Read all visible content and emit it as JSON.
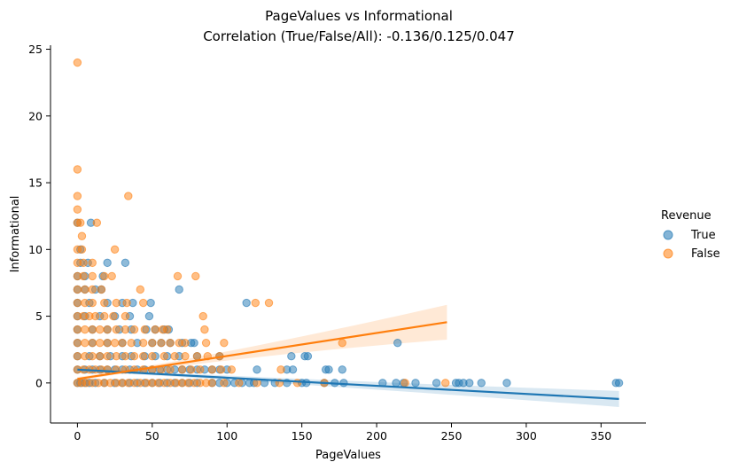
{
  "chart_data": {
    "type": "scatter",
    "title_line1": "PageValues vs Informational",
    "title_line2": "Correlation (True/False/All): -0.136/0.125/0.047",
    "xlabel": "PageValues",
    "ylabel": "Informational",
    "xlim": [
      -18,
      380
    ],
    "ylim": [
      -3,
      25.3
    ],
    "xticks": [
      0,
      50,
      100,
      150,
      200,
      250,
      300,
      350
    ],
    "yticks": [
      0,
      5,
      10,
      15,
      20,
      25
    ],
    "grid": false,
    "legend": {
      "title": "Revenue",
      "placement": "right",
      "entries": [
        {
          "label": "True",
          "color": "#1f77b4"
        },
        {
          "label": "False",
          "color": "#ff7f0e"
        }
      ]
    },
    "series": [
      {
        "name": "True",
        "color": "#1f77b4",
        "points": [
          [
            0,
            0
          ],
          [
            2,
            0
          ],
          [
            5,
            0
          ],
          [
            8,
            0
          ],
          [
            12,
            0
          ],
          [
            18,
            0
          ],
          [
            25,
            0
          ],
          [
            30,
            0
          ],
          [
            35,
            0
          ],
          [
            40,
            0
          ],
          [
            45,
            0
          ],
          [
            50,
            0
          ],
          [
            55,
            0
          ],
          [
            60,
            0
          ],
          [
            65,
            0
          ],
          [
            70,
            0
          ],
          [
            75,
            0
          ],
          [
            80,
            0
          ],
          [
            90,
            0
          ],
          [
            95,
            0
          ],
          [
            100,
            0
          ],
          [
            105,
            0
          ],
          [
            110,
            0
          ],
          [
            115,
            0
          ],
          [
            118,
            0
          ],
          [
            125,
            0
          ],
          [
            132,
            0
          ],
          [
            140,
            0
          ],
          [
            150,
            0
          ],
          [
            153,
            0
          ],
          [
            165,
            0
          ],
          [
            172,
            0
          ],
          [
            178,
            0
          ],
          [
            204,
            0
          ],
          [
            213,
            0
          ],
          [
            218,
            0
          ],
          [
            226,
            0
          ],
          [
            240,
            0
          ],
          [
            253,
            0
          ],
          [
            255,
            0
          ],
          [
            258,
            0
          ],
          [
            262,
            0
          ],
          [
            270,
            0
          ],
          [
            287,
            0
          ],
          [
            360,
            0
          ],
          [
            362,
            0
          ],
          [
            0,
            1
          ],
          [
            5,
            1
          ],
          [
            10,
            1
          ],
          [
            15,
            1
          ],
          [
            20,
            1
          ],
          [
            25,
            1
          ],
          [
            30,
            1
          ],
          [
            35,
            1
          ],
          [
            40,
            1
          ],
          [
            45,
            1
          ],
          [
            50,
            1
          ],
          [
            55,
            1
          ],
          [
            60,
            1
          ],
          [
            65,
            1
          ],
          [
            70,
            1
          ],
          [
            75,
            1
          ],
          [
            80,
            1
          ],
          [
            85,
            1
          ],
          [
            90,
            1
          ],
          [
            95,
            1
          ],
          [
            100,
            1
          ],
          [
            120,
            1
          ],
          [
            140,
            1
          ],
          [
            144,
            1
          ],
          [
            166,
            1
          ],
          [
            168,
            1
          ],
          [
            177,
            1
          ],
          [
            0,
            2
          ],
          [
            8,
            2
          ],
          [
            15,
            2
          ],
          [
            22,
            2
          ],
          [
            30,
            2
          ],
          [
            36,
            2
          ],
          [
            45,
            2
          ],
          [
            52,
            2
          ],
          [
            60,
            2
          ],
          [
            68,
            2
          ],
          [
            80,
            2
          ],
          [
            95,
            2
          ],
          [
            143,
            2
          ],
          [
            152,
            2
          ],
          [
            154,
            2
          ],
          [
            0,
            3
          ],
          [
            10,
            3
          ],
          [
            20,
            3
          ],
          [
            30,
            3
          ],
          [
            40,
            3
          ],
          [
            50,
            3
          ],
          [
            56,
            3
          ],
          [
            62,
            3
          ],
          [
            70,
            3
          ],
          [
            76,
            3
          ],
          [
            78,
            3
          ],
          [
            214,
            3
          ],
          [
            0,
            4
          ],
          [
            10,
            4
          ],
          [
            20,
            4
          ],
          [
            28,
            4
          ],
          [
            36,
            4
          ],
          [
            46,
            4
          ],
          [
            52,
            4
          ],
          [
            58,
            4
          ],
          [
            61,
            4
          ],
          [
            0,
            5
          ],
          [
            5,
            5
          ],
          [
            15,
            5
          ],
          [
            25,
            5
          ],
          [
            35,
            5
          ],
          [
            48,
            5
          ],
          [
            0,
            6
          ],
          [
            8,
            6
          ],
          [
            20,
            6
          ],
          [
            30,
            6
          ],
          [
            37,
            6
          ],
          [
            49,
            6
          ],
          [
            113,
            6
          ],
          [
            0,
            7
          ],
          [
            5,
            7
          ],
          [
            12,
            7
          ],
          [
            16,
            7
          ],
          [
            68,
            7
          ],
          [
            0,
            8
          ],
          [
            5,
            8
          ],
          [
            17,
            8
          ],
          [
            2,
            9
          ],
          [
            7,
            9
          ],
          [
            20,
            9
          ],
          [
            32,
            9
          ],
          [
            2,
            10
          ],
          [
            0,
            12
          ],
          [
            9,
            12
          ]
        ],
        "regression": {
          "x0": 0,
          "y0": 1.0,
          "x1": 362,
          "y1": -1.2
        }
      },
      {
        "name": "False",
        "color": "#ff7f0e",
        "points": [
          [
            0,
            0
          ],
          [
            3,
            0
          ],
          [
            6,
            0
          ],
          [
            10,
            0
          ],
          [
            14,
            0
          ],
          [
            18,
            0
          ],
          [
            22,
            0
          ],
          [
            26,
            0
          ],
          [
            30,
            0
          ],
          [
            34,
            0
          ],
          [
            38,
            0
          ],
          [
            42,
            0
          ],
          [
            46,
            0
          ],
          [
            50,
            0
          ],
          [
            54,
            0
          ],
          [
            58,
            0
          ],
          [
            62,
            0
          ],
          [
            66,
            0
          ],
          [
            70,
            0
          ],
          [
            74,
            0
          ],
          [
            78,
            0
          ],
          [
            82,
            0
          ],
          [
            86,
            0
          ],
          [
            90,
            0
          ],
          [
            98,
            0
          ],
          [
            108,
            0
          ],
          [
            120,
            0
          ],
          [
            135,
            0
          ],
          [
            147,
            0
          ],
          [
            165,
            0
          ],
          [
            219,
            0
          ],
          [
            246,
            0
          ],
          [
            0,
            1
          ],
          [
            4,
            1
          ],
          [
            8,
            1
          ],
          [
            12,
            1
          ],
          [
            16,
            1
          ],
          [
            20,
            1
          ],
          [
            26,
            1
          ],
          [
            32,
            1
          ],
          [
            38,
            1
          ],
          [
            44,
            1
          ],
          [
            50,
            1
          ],
          [
            56,
            1
          ],
          [
            62,
            1
          ],
          [
            70,
            1
          ],
          [
            76,
            1
          ],
          [
            82,
            1
          ],
          [
            90,
            1
          ],
          [
            96,
            1
          ],
          [
            103,
            1
          ],
          [
            136,
            1
          ],
          [
            0,
            2
          ],
          [
            5,
            2
          ],
          [
            10,
            2
          ],
          [
            15,
            2
          ],
          [
            20,
            2
          ],
          [
            26,
            2
          ],
          [
            32,
            2
          ],
          [
            38,
            2
          ],
          [
            44,
            2
          ],
          [
            50,
            2
          ],
          [
            58,
            2
          ],
          [
            65,
            2
          ],
          [
            72,
            2
          ],
          [
            80,
            2
          ],
          [
            87,
            2
          ],
          [
            95,
            2
          ],
          [
            0,
            3
          ],
          [
            5,
            3
          ],
          [
            10,
            3
          ],
          [
            15,
            3
          ],
          [
            20,
            3
          ],
          [
            25,
            3
          ],
          [
            30,
            3
          ],
          [
            36,
            3
          ],
          [
            44,
            3
          ],
          [
            50,
            3
          ],
          [
            56,
            3
          ],
          [
            62,
            3
          ],
          [
            68,
            3
          ],
          [
            72,
            3
          ],
          [
            86,
            3
          ],
          [
            98,
            3
          ],
          [
            177,
            3
          ],
          [
            0,
            4
          ],
          [
            5,
            4
          ],
          [
            10,
            4
          ],
          [
            15,
            4
          ],
          [
            20,
            4
          ],
          [
            26,
            4
          ],
          [
            32,
            4
          ],
          [
            38,
            4
          ],
          [
            45,
            4
          ],
          [
            52,
            4
          ],
          [
            57,
            4
          ],
          [
            60,
            4
          ],
          [
            85,
            4
          ],
          [
            0,
            5
          ],
          [
            4,
            5
          ],
          [
            8,
            5
          ],
          [
            12,
            5
          ],
          [
            18,
            5
          ],
          [
            24,
            5
          ],
          [
            32,
            5
          ],
          [
            84,
            5
          ],
          [
            0,
            6
          ],
          [
            5,
            6
          ],
          [
            10,
            6
          ],
          [
            18,
            6
          ],
          [
            26,
            6
          ],
          [
            33,
            6
          ],
          [
            44,
            6
          ],
          [
            119,
            6
          ],
          [
            128,
            6
          ],
          [
            0,
            7
          ],
          [
            5,
            7
          ],
          [
            10,
            7
          ],
          [
            16,
            7
          ],
          [
            42,
            7
          ],
          [
            0,
            8
          ],
          [
            4,
            8
          ],
          [
            10,
            8
          ],
          [
            18,
            8
          ],
          [
            23,
            8
          ],
          [
            67,
            8
          ],
          [
            79,
            8
          ],
          [
            0,
            9
          ],
          [
            4,
            9
          ],
          [
            10,
            9
          ],
          [
            0,
            10
          ],
          [
            3,
            10
          ],
          [
            25,
            10
          ],
          [
            3,
            11
          ],
          [
            0,
            12
          ],
          [
            2,
            12
          ],
          [
            13,
            12
          ],
          [
            0,
            13
          ],
          [
            0,
            14
          ],
          [
            34,
            14
          ],
          [
            0,
            16
          ],
          [
            0,
            24
          ]
        ],
        "regression": {
          "x0": 0,
          "y0": 0.3,
          "x1": 247,
          "y1": 4.55
        }
      }
    ]
  }
}
